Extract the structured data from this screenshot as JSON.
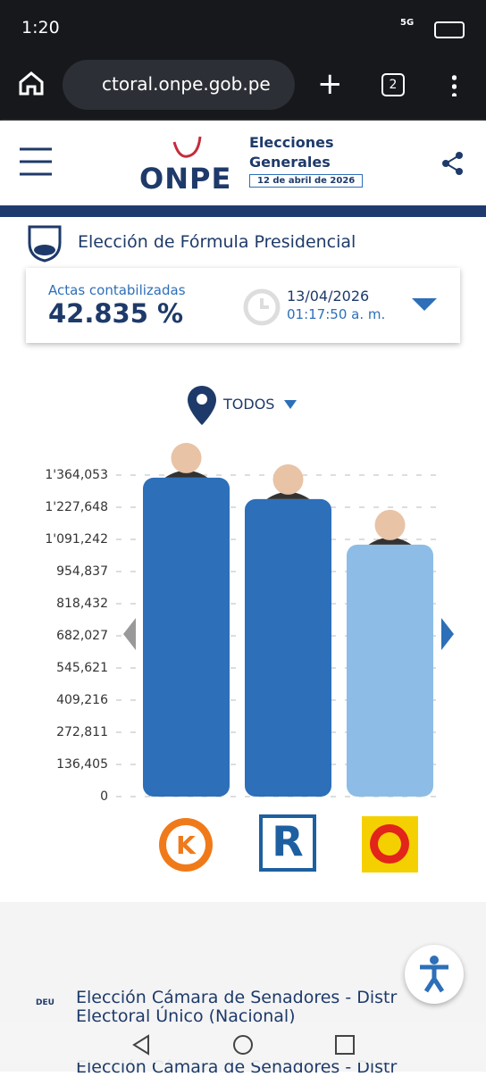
{
  "status_bar": {
    "time": "1:20",
    "network": "5G"
  },
  "browser": {
    "url": "ctoral.onpe.gob.pe",
    "tabs": "2"
  },
  "header": {
    "logo": "ONPE",
    "title_line1": "Elecciones",
    "title_line2": "Generales",
    "date": "12 de abril de 2026"
  },
  "section": {
    "title": "Elección de Fórmula Presidencial",
    "actas_label": "Actas contabilizadas",
    "actas_value": "42.835 %",
    "date": "13/04/2026",
    "time": "01:17:50 a. m.",
    "filter": "TODOS"
  },
  "chart_data": {
    "type": "bar",
    "categories": [
      null,
      null,
      null
    ],
    "values": [
      1353000,
      1262000,
      1069000
    ],
    "colors": [
      "#2d6fb8",
      "#2d6fb8",
      "#8dbde6"
    ],
    "ylim": [
      0,
      1364053
    ],
    "yticks": [
      0,
      {
        "value": 136405,
        "label": "136,405"
      },
      {
        "value": 272811,
        "label": "272,811"
      },
      {
        "value": 409216,
        "label": "409,216"
      },
      {
        "value": 545621,
        "label": "545,621"
      },
      {
        "value": 682027,
        "label": "682,027"
      },
      {
        "value": 818432,
        "label": "818,432"
      },
      {
        "value": 954837,
        "label": "954,837"
      },
      {
        "value": 1091242,
        "label": "1'091,242"
      },
      {
        "value": 1227648,
        "label": "1'227,648"
      },
      {
        "value": 1364053,
        "label": "1'364,053"
      }
    ],
    "grid": true
  },
  "next_section": {
    "badge": "DEU",
    "title_line1": "Elección Cámara de Senadores - Distr",
    "title_line2": "Electoral Único (Nacional)",
    "peek": "Elección Cámara de Senadores - Distr"
  }
}
